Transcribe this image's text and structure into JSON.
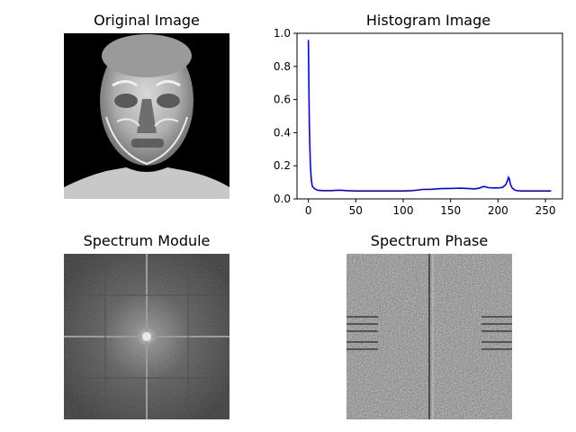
{
  "panels": {
    "original": {
      "title": "Original Image"
    },
    "histogram": {
      "title": "Histogram Image"
    },
    "module": {
      "title": "Spectrum Module"
    },
    "phase": {
      "title": "Spectrum Phase"
    }
  },
  "chart_data": {
    "type": "line",
    "title": "Histogram Image",
    "xlabel": "",
    "ylabel": "",
    "xlim": [
      -12,
      268
    ],
    "ylim": [
      0,
      1.0
    ],
    "xticks": [
      0,
      50,
      100,
      150,
      200,
      250
    ],
    "yticks": [
      0.0,
      0.2,
      0.4,
      0.6,
      0.8,
      1.0
    ],
    "grid": false,
    "series": [
      {
        "color": "#0000ff",
        "x": [
          0,
          1,
          2,
          3,
          4,
          5,
          7,
          10,
          15,
          20,
          25,
          30,
          35,
          40,
          50,
          60,
          80,
          100,
          110,
          115,
          120,
          130,
          140,
          150,
          160,
          170,
          175,
          180,
          185,
          190,
          195,
          200,
          205,
          208,
          210,
          211,
          212,
          213,
          215,
          218,
          220,
          225,
          230,
          240,
          250,
          256
        ],
        "y": [
          0.96,
          0.45,
          0.22,
          0.12,
          0.08,
          0.07,
          0.06,
          0.052,
          0.05,
          0.05,
          0.05,
          0.052,
          0.052,
          0.05,
          0.048,
          0.048,
          0.048,
          0.048,
          0.05,
          0.053,
          0.057,
          0.058,
          0.062,
          0.063,
          0.065,
          0.062,
          0.06,
          0.065,
          0.075,
          0.068,
          0.066,
          0.066,
          0.07,
          0.085,
          0.11,
          0.13,
          0.12,
          0.09,
          0.065,
          0.052,
          0.05,
          0.048,
          0.048,
          0.048,
          0.048,
          0.048
        ]
      }
    ]
  }
}
